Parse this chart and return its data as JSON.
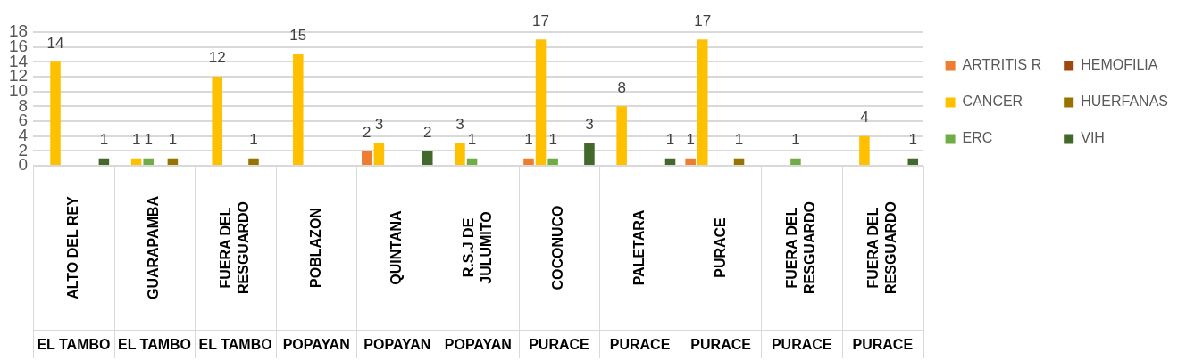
{
  "chart_data": {
    "type": "bar",
    "categories": [
      "ALTO DEL REY\nEL TAMBO",
      "GUARAPAMBA\nEL TAMBO",
      "FUERA DEL\nRESGUARDO\nEL TAMBO",
      "POBLAZON\nPOPAYAN",
      "QUINTANA\nPOPAYAN",
      "R.S.J DE\nJULUMITO\nPOPAYAN",
      "COCONUCO\nPURACE",
      "PALETARA\nPURACE",
      "PURACE\nPURACE",
      "FUERA DEL\nRESGUARDO\nPURACE",
      "FUERA DEL\nRESGUARDO\nPURACE"
    ],
    "series": [
      {
        "name": "ARTRITIS R",
        "color": "#ed7d31",
        "values": [
          null,
          null,
          null,
          null,
          2,
          null,
          1,
          null,
          1,
          null,
          null
        ]
      },
      {
        "name": "CANCER",
        "color": "#ffc000",
        "values": [
          14,
          1,
          12,
          15,
          3,
          3,
          17,
          8,
          17,
          null,
          4
        ]
      },
      {
        "name": "ERC",
        "color": "#70ad47",
        "values": [
          null,
          1,
          null,
          null,
          null,
          1,
          1,
          null,
          null,
          1,
          null
        ]
      },
      {
        "name": "HEMOFILIA",
        "color": "#9e480e",
        "values": [
          null,
          null,
          null,
          null,
          null,
          null,
          null,
          null,
          null,
          null,
          null
        ]
      },
      {
        "name": "HUERFANAS",
        "color": "#997300",
        "values": [
          null,
          1,
          1,
          null,
          null,
          null,
          null,
          null,
          1,
          null,
          null
        ]
      },
      {
        "name": "VIH",
        "color": "#43682b",
        "values": [
          1,
          null,
          null,
          null,
          2,
          null,
          3,
          1,
          null,
          null,
          1
        ]
      }
    ],
    "ylim": [
      0,
      18
    ],
    "yticks": [
      0,
      2,
      4,
      6,
      8,
      10,
      12,
      14,
      16,
      18
    ],
    "grid": "y",
    "legend": "right",
    "data_labels": true
  }
}
